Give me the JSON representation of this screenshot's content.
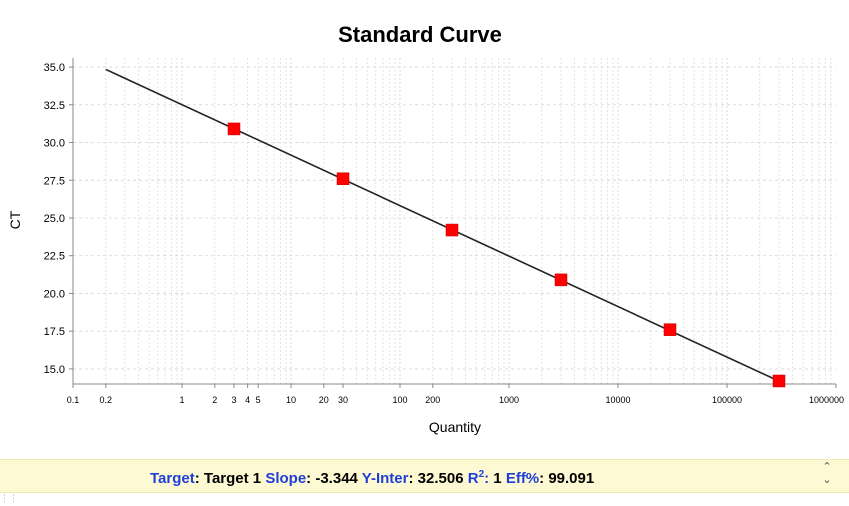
{
  "chart_data": {
    "type": "scatter",
    "title": "Standard Curve",
    "xlabel": "Quantity",
    "ylabel": "CT",
    "x_scale": "log",
    "xlim": [
      0.1,
      1000000
    ],
    "ylim": [
      14.0,
      35.6
    ],
    "grid": true,
    "x_tick_labels": [
      "0.1",
      "0.2",
      "1",
      "2",
      "3",
      "4",
      "5",
      "10",
      "20",
      "30",
      "100",
      "200",
      "1000",
      "10000",
      "100000",
      "1000000"
    ],
    "y_ticks": [
      "15.0",
      "17.5",
      "20.0",
      "22.5",
      "25.0",
      "27.5",
      "30.0",
      "32.5",
      "35.0"
    ],
    "fit_line": {
      "slope": -3.344,
      "intercept": 32.506,
      "x_range": [
        0.2,
        300000
      ]
    },
    "points": {
      "x": [
        3,
        30,
        300,
        3000,
        30000,
        300000
      ],
      "y": [
        30.9,
        27.6,
        24.2,
        20.9,
        17.6,
        14.2
      ],
      "color": "#ff0000",
      "marker": "square"
    },
    "line_color": "#222222"
  },
  "summary": {
    "target_label": "Target",
    "target_value": "Target 1",
    "slope_label": "Slope",
    "slope_value": "-3.344",
    "yinter_label": "Y-Inter",
    "yinter_value": "32.506",
    "r2_label": "R",
    "r2_sup": "2",
    "r2_value": "1",
    "eff_label": "Eff%",
    "eff_value": "99.091"
  },
  "colors": {
    "label_blue": "#1f3fd8",
    "info_bar_bg": "#fdf9d3",
    "marker_red": "#ff0000",
    "grid_gray": "#d8d8d8"
  },
  "icons": {
    "scroll_up": "chevron-up-icon",
    "scroll_down": "chevron-down-icon"
  }
}
